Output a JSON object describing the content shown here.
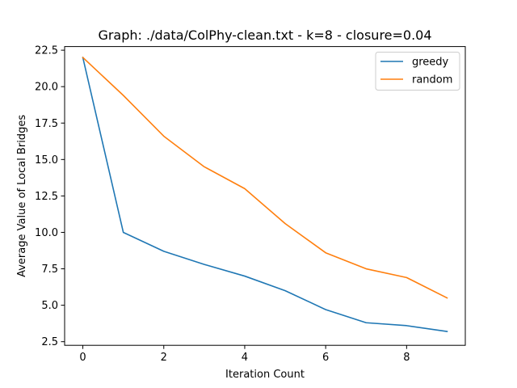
{
  "chart_data": {
    "type": "line",
    "title": "Graph: ./data/ColPhy-clean.txt - k=8 - closure=0.04",
    "xlabel": "Iteration Count",
    "ylabel": "Average Value of Local Bridges",
    "xlim": [
      -0.45,
      9.45
    ],
    "ylim": [
      2.25,
      22.75
    ],
    "x_ticks": [
      0,
      2,
      4,
      6,
      8
    ],
    "x_tick_labels": [
      "0",
      "2",
      "4",
      "6",
      "8"
    ],
    "y_ticks": [
      2.5,
      5.0,
      7.5,
      10.0,
      12.5,
      15.0,
      17.5,
      20.0,
      22.5
    ],
    "y_tick_labels": [
      "2.5",
      "5.0",
      "7.5",
      "10.0",
      "12.5",
      "15.0",
      "17.5",
      "20.0",
      "22.5"
    ],
    "grid": false,
    "legend_position": "top-right",
    "x": [
      0,
      1,
      2,
      3,
      4,
      5,
      6,
      7,
      8,
      9
    ],
    "series": [
      {
        "name": "greedy",
        "color": "#1f77b4",
        "values": [
          22.0,
          10.0,
          8.7,
          7.8,
          7.0,
          6.0,
          4.7,
          3.8,
          3.6,
          3.2
        ]
      },
      {
        "name": "random",
        "color": "#ff7f0e",
        "values": [
          22.0,
          19.4,
          16.6,
          14.5,
          13.0,
          10.6,
          8.6,
          7.5,
          6.9,
          5.5
        ]
      }
    ]
  }
}
